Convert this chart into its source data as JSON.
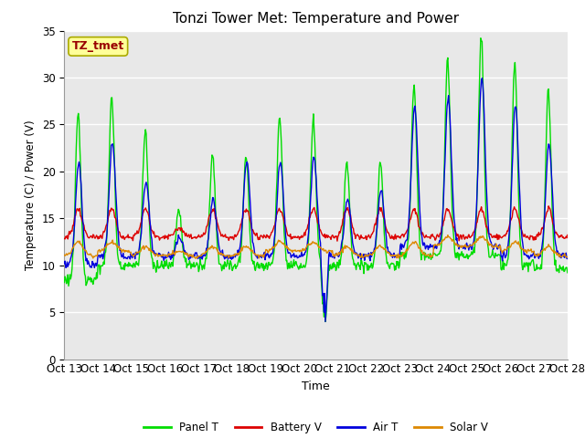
{
  "title": "Tonzi Tower Met: Temperature and Power",
  "xlabel": "Time",
  "ylabel": "Temperature (C) / Power (V)",
  "ylim": [
    0,
    35
  ],
  "x_tick_labels": [
    "Oct 13",
    "Oct 14",
    "Oct 15",
    "Oct 16",
    "Oct 17",
    "Oct 18",
    "Oct 19",
    "Oct 20",
    "Oct 21",
    "Oct 22",
    "Oct 23",
    "Oct 24",
    "Oct 25",
    "Oct 26",
    "Oct 27",
    "Oct 28"
  ],
  "legend_labels": [
    "Panel T",
    "Battery V",
    "Air T",
    "Solar V"
  ],
  "line_colors": [
    "#00dd00",
    "#dd0000",
    "#0000dd",
    "#dd8800"
  ],
  "annotation_text": "TZ_tmet",
  "annotation_bg": "#ffff99",
  "annotation_fg": "#990000",
  "plot_bg": "#e8e8e8",
  "fig_bg": "#ffffff",
  "grid_color": "#ffffff",
  "title_fontsize": 11,
  "yticks": [
    0,
    5,
    10,
    15,
    20,
    25,
    30,
    35
  ]
}
